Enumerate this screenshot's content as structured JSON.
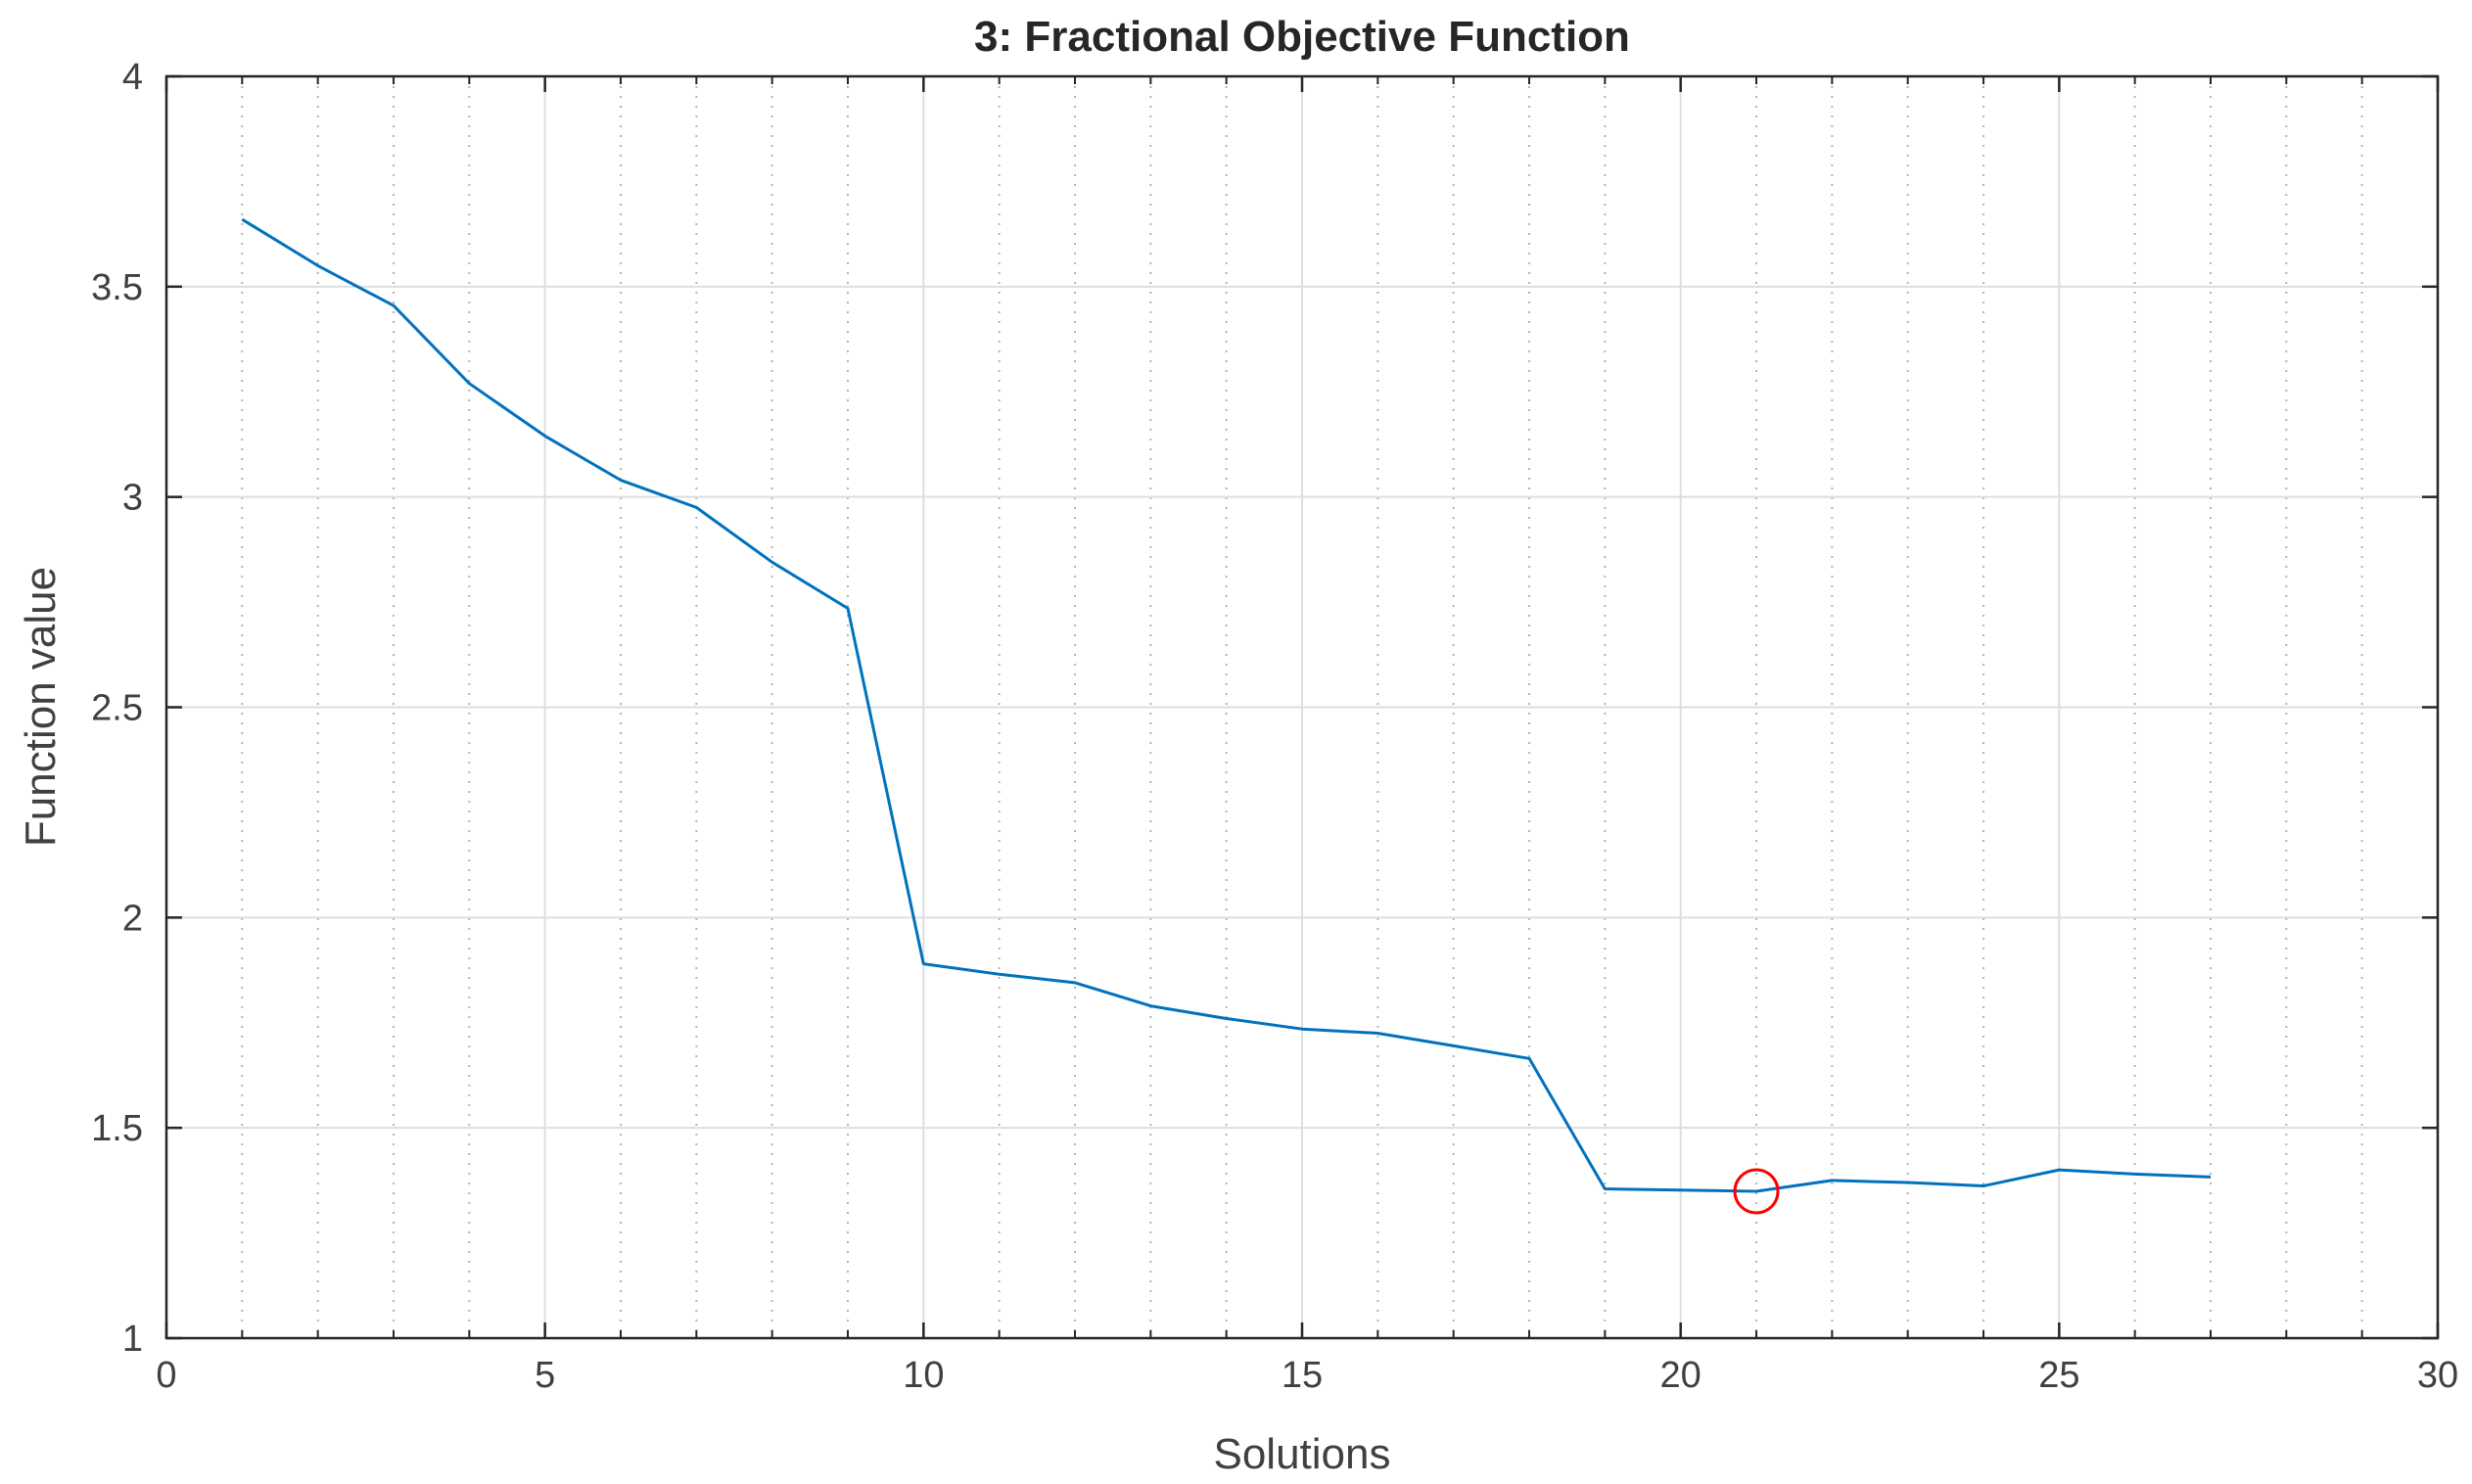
{
  "chart_data": {
    "type": "line",
    "title": "3: Fractional Objective Function",
    "xlabel": "Solutions",
    "ylabel": "Function value",
    "xlim": [
      0,
      30
    ],
    "ylim": [
      1,
      4
    ],
    "xticks": [
      0,
      5,
      10,
      15,
      20,
      25,
      30
    ],
    "yticks": [
      1,
      1.5,
      2,
      2.5,
      3,
      3.5,
      4
    ],
    "xtick_labels": [
      "0",
      "5",
      "10",
      "15",
      "20",
      "25",
      "30"
    ],
    "ytick_labels": [
      "1",
      "1.5",
      "2",
      "2.5",
      "3",
      "3.5",
      "4"
    ],
    "grid": true,
    "minor_grid_x": true,
    "series": [
      {
        "color": "#0072BD",
        "x": [
          1,
          2,
          3,
          4,
          5,
          6,
          7,
          8,
          9,
          10,
          11,
          12,
          13,
          14,
          15,
          16,
          17,
          18,
          19,
          20,
          21,
          22,
          23,
          24,
          25,
          26,
          27
        ],
        "y": [
          3.66,
          3.55,
          3.455,
          3.27,
          3.145,
          3.04,
          2.975,
          2.845,
          2.735,
          1.89,
          1.865,
          1.845,
          1.79,
          1.76,
          1.735,
          1.725,
          1.695,
          1.665,
          1.355,
          1.352,
          1.349,
          1.375,
          1.37,
          1.362,
          1.4,
          1.39,
          1.383
        ]
      }
    ],
    "highlight": {
      "x": 21,
      "y": 1.349,
      "color": "#FF0000",
      "marker": "circle"
    }
  }
}
